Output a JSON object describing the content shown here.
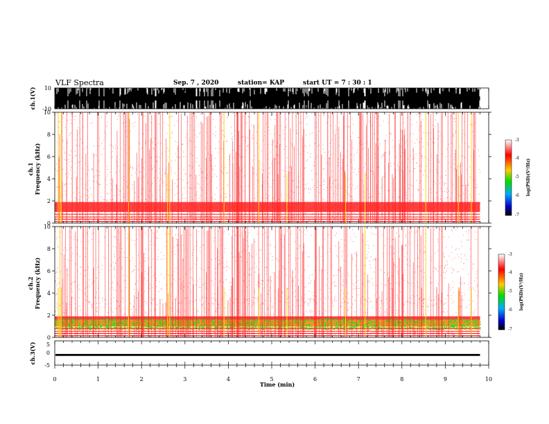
{
  "header": {
    "title": "VLF Spectra",
    "date": "Sep. 7 , 2020",
    "station": "station= KAP",
    "start_ut": "start  UT =   7 : 30 : 1"
  },
  "colors": {
    "dense": "#ff2020",
    "sparse": "#ff5a5a",
    "green": "#22dd22",
    "yellow": "#ffd21a",
    "colorbar": [
      "#ffffff",
      "#ff0000",
      "#ffcc00",
      "#00dd00",
      "#00aaff",
      "#0000cc",
      "#000000"
    ]
  },
  "chart_data": [
    {
      "type": "area",
      "panel": "ch1-waveform",
      "ylabel": "ch.1(V)",
      "ylim": [
        -10,
        10
      ],
      "yticks": [
        "10",
        "-10"
      ],
      "xlim": [
        0,
        10
      ],
      "description_of_signal": "saturated broadband waveform"
    },
    {
      "type": "heatmap",
      "panel": "ch1-spectrogram",
      "ylabel": "ch.1\nFrequency (kHz)",
      "ylabel_lines": [
        "ch.1",
        "Frequency  (kHz)"
      ],
      "ylim": [
        0,
        10
      ],
      "yticks": [
        "0",
        "2",
        "4",
        "6",
        "8",
        "10"
      ],
      "xlim": [
        0,
        10
      ],
      "colorbar": {
        "label": "log(PSD)(V²/Hz)",
        "range": [
          -7,
          -3
        ],
        "ticks": [
          "-3",
          "-4",
          "-5",
          "-6",
          "-7"
        ]
      }
    },
    {
      "type": "heatmap",
      "panel": "ch2-spectrogram",
      "ylabel": "ch.2\nFrequency (kHz)",
      "ylabel_lines": [
        "ch.2",
        "Frequency  (kHz)"
      ],
      "ylim": [
        0,
        10
      ],
      "yticks": [
        "0",
        "2",
        "4",
        "6",
        "8",
        "10"
      ],
      "xlim": [
        0,
        10
      ],
      "colorbar": {
        "label": "log(PSD)(V²/Hz)",
        "range": [
          -7,
          -3
        ],
        "ticks": [
          "-3",
          "-4",
          "-5",
          "-6",
          "-7"
        ]
      }
    },
    {
      "type": "line",
      "panel": "ch3-waveform",
      "ylabel": "ch.3(V)",
      "ylim": [
        -5,
        5
      ],
      "yticks": [
        "5",
        "0",
        "-5"
      ],
      "xlim": [
        0,
        9.8
      ],
      "level_band": [
        -1.2,
        -0.4
      ],
      "xlabel": "Time  (min)",
      "xticks": [
        "0",
        "1",
        "2",
        "3",
        "4",
        "5",
        "6",
        "7",
        "8",
        "9",
        "10"
      ]
    }
  ]
}
